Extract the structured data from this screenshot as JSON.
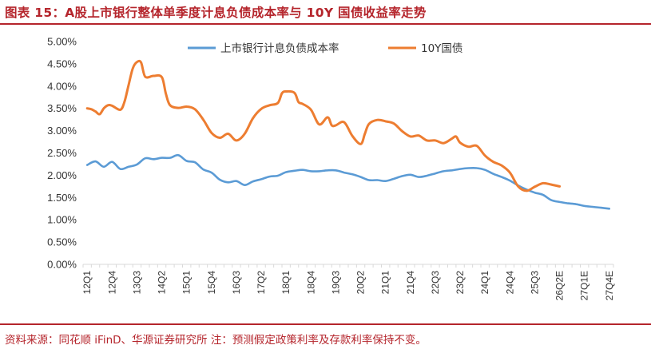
{
  "header": {
    "title": "图表 15：A股上市银行整体单季度计息负债成本率与 10Y 国债收益率走势"
  },
  "footer": {
    "source": "资料来源：同花顺 iFinD、华源证券研究所 注：预测假定政策利率及存款利率保持不变。"
  },
  "chart_data": {
    "type": "line",
    "title": "图表 15：A股上市银行整体单季度计息负债成本率与 10Y 国债收益率走势",
    "xlabel": "",
    "ylabel": "",
    "ylim": [
      0,
      5
    ],
    "y_ticks": [
      "0.00%",
      "0.50%",
      "1.00%",
      "1.50%",
      "2.00%",
      "2.50%",
      "3.00%",
      "3.50%",
      "4.00%",
      "4.50%",
      "5.00%"
    ],
    "x_tick_labels": [
      "12Q1",
      "12Q4",
      "13Q3",
      "14Q2",
      "15Q1",
      "15Q4",
      "16Q3",
      "17Q2",
      "18Q1",
      "18Q4",
      "19Q3",
      "20Q2",
      "21Q1",
      "21Q4",
      "22Q3",
      "23Q2",
      "24Q1",
      "24Q4",
      "25Q3",
      "26Q2E",
      "27Q1E",
      "27Q4E"
    ],
    "grid": false,
    "legend_position": "top-center",
    "series": [
      {
        "name": "上市银行计息负债成本率",
        "color": "#5b9bd5",
        "points": [
          [
            "12Q1",
            2.23
          ],
          [
            "12Q2",
            2.31
          ],
          [
            "12Q3",
            2.19
          ],
          [
            "12Q4",
            2.3
          ],
          [
            "13Q1",
            2.14
          ],
          [
            "13Q2",
            2.19
          ],
          [
            "13Q3",
            2.24
          ],
          [
            "13Q4",
            2.38
          ],
          [
            "14Q1",
            2.36
          ],
          [
            "14Q2",
            2.39
          ],
          [
            "14Q3",
            2.39
          ],
          [
            "14Q4",
            2.45
          ],
          [
            "15Q1",
            2.32
          ],
          [
            "15Q2",
            2.29
          ],
          [
            "15Q3",
            2.13
          ],
          [
            "15Q4",
            2.06
          ],
          [
            "16Q1",
            1.9
          ],
          [
            "16Q2",
            1.84
          ],
          [
            "16Q3",
            1.87
          ],
          [
            "16Q4",
            1.78
          ],
          [
            "17Q1",
            1.86
          ],
          [
            "17Q2",
            1.91
          ],
          [
            "17Q3",
            1.97
          ],
          [
            "17Q4",
            1.99
          ],
          [
            "18Q1",
            2.07
          ],
          [
            "18Q2",
            2.1
          ],
          [
            "18Q3",
            2.12
          ],
          [
            "18Q4",
            2.09
          ],
          [
            "19Q1",
            2.09
          ],
          [
            "19Q2",
            2.11
          ],
          [
            "19Q3",
            2.11
          ],
          [
            "19Q4",
            2.06
          ],
          [
            "20Q1",
            2.02
          ],
          [
            "20Q2",
            1.96
          ],
          [
            "20Q3",
            1.89
          ],
          [
            "20Q4",
            1.89
          ],
          [
            "21Q1",
            1.87
          ],
          [
            "21Q2",
            1.92
          ],
          [
            "21Q3",
            1.98
          ],
          [
            "21Q4",
            2.01
          ],
          [
            "22Q1",
            1.96
          ],
          [
            "22Q2",
            1.99
          ],
          [
            "22Q3",
            2.04
          ],
          [
            "22Q4",
            2.09
          ],
          [
            "23Q1",
            2.11
          ],
          [
            "23Q2",
            2.14
          ],
          [
            "23Q3",
            2.16
          ],
          [
            "23Q4",
            2.16
          ],
          [
            "24Q1",
            2.12
          ],
          [
            "24Q2",
            2.03
          ],
          [
            "24Q3",
            1.96
          ],
          [
            "24Q4",
            1.88
          ],
          [
            "25Q1",
            1.77
          ],
          [
            "25Q2",
            1.68
          ],
          [
            "25Q3",
            1.61
          ],
          [
            "25Q4E",
            1.56
          ],
          [
            "26Q1E",
            1.44
          ],
          [
            "26Q2E",
            1.4
          ],
          [
            "26Q3E",
            1.37
          ],
          [
            "26Q4E",
            1.35
          ],
          [
            "27Q1E",
            1.31
          ],
          [
            "27Q2E",
            1.29
          ],
          [
            "27Q3E",
            1.27
          ],
          [
            "27Q4E",
            1.25
          ]
        ]
      },
      {
        "name": "10Y国债",
        "color": "#ed7d31",
        "points": [
          [
            "12Q1",
            3.5
          ],
          [
            "12Q1.5",
            3.48
          ],
          [
            "12Q2",
            3.43
          ],
          [
            "12Q2.5",
            3.37
          ],
          [
            "12Q3",
            3.5
          ],
          [
            "12Q3.5",
            3.57
          ],
          [
            "12Q4",
            3.56
          ],
          [
            "13Q1",
            3.47
          ],
          [
            "13Q1.5",
            3.65
          ],
          [
            "13Q2",
            4.03
          ],
          [
            "13Q2.5",
            4.4
          ],
          [
            "13Q3",
            4.54
          ],
          [
            "13Q3.5",
            4.53
          ],
          [
            "13Q4",
            4.21
          ],
          [
            "14Q1",
            4.23
          ],
          [
            "14Q2",
            4.2
          ],
          [
            "14Q2.5",
            3.82
          ],
          [
            "14Q3",
            3.57
          ],
          [
            "14Q4",
            3.51
          ],
          [
            "15Q1",
            3.54
          ],
          [
            "15Q2",
            3.48
          ],
          [
            "15Q3",
            3.25
          ],
          [
            "15Q4",
            2.95
          ],
          [
            "16Q1",
            2.84
          ],
          [
            "16Q2",
            2.93
          ],
          [
            "16Q3",
            2.78
          ],
          [
            "16Q4",
            2.93
          ],
          [
            "17Q1",
            3.28
          ],
          [
            "17Q2",
            3.49
          ],
          [
            "17Q3",
            3.57
          ],
          [
            "17Q4",
            3.62
          ],
          [
            "17Q4.5",
            3.84
          ],
          [
            "18Q1",
            3.88
          ],
          [
            "18Q2",
            3.85
          ],
          [
            "18Q2.5",
            3.64
          ],
          [
            "18Q3",
            3.6
          ],
          [
            "18Q4",
            3.47
          ],
          [
            "19Q1",
            3.14
          ],
          [
            "19Q2",
            3.3
          ],
          [
            "19Q2.5",
            3.12
          ],
          [
            "19Q3",
            3.12
          ],
          [
            "19Q4",
            3.19
          ],
          [
            "20Q1",
            2.88
          ],
          [
            "20Q2",
            2.7
          ],
          [
            "20Q2.5",
            2.93
          ],
          [
            "20Q3",
            3.15
          ],
          [
            "20Q4",
            3.24
          ],
          [
            "21Q1",
            3.21
          ],
          [
            "21Q2",
            3.16
          ],
          [
            "21Q3",
            2.99
          ],
          [
            "21Q4",
            2.87
          ],
          [
            "22Q1",
            2.89
          ],
          [
            "22Q2",
            2.78
          ],
          [
            "22Q3",
            2.78
          ],
          [
            "22Q4",
            2.72
          ],
          [
            "23Q1",
            2.82
          ],
          [
            "23Q1.5",
            2.87
          ],
          [
            "23Q2",
            2.73
          ],
          [
            "23Q3",
            2.64
          ],
          [
            "23Q4",
            2.66
          ],
          [
            "24Q1",
            2.44
          ],
          [
            "24Q2",
            2.3
          ],
          [
            "24Q3",
            2.22
          ],
          [
            "24Q4",
            2.06
          ],
          [
            "25Q1",
            1.75
          ],
          [
            "25Q2",
            1.65
          ],
          [
            "25Q3",
            1.74
          ],
          [
            "25Q4E",
            1.82
          ],
          [
            "26Q1E",
            1.79
          ],
          [
            "26Q2E",
            1.75
          ]
        ]
      }
    ]
  }
}
